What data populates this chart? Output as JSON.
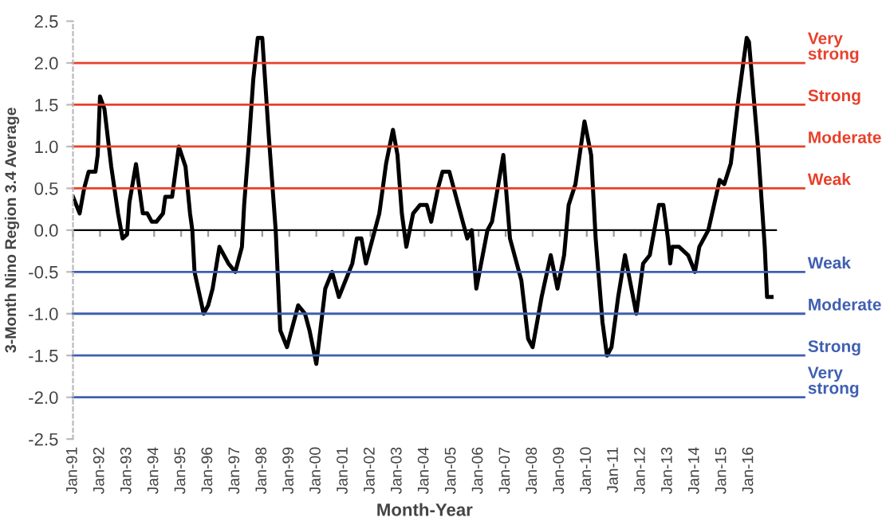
{
  "chart_data": {
    "type": "line",
    "xlabel": "Month-Year",
    "ylabel": "3-Month Nino Region 3.4 Average",
    "x": [
      "1991-01",
      "1991-04",
      "1991-06",
      "1991-08",
      "1991-11",
      "1991-12",
      "1992-01",
      "1992-03",
      "1992-06",
      "1992-09",
      "1992-11",
      "1993-01",
      "1993-02",
      "1993-05",
      "1993-08",
      "1993-10",
      "1993-12",
      "1994-02",
      "1994-05",
      "1994-06",
      "1994-09",
      "1994-12",
      "1995-03",
      "1995-05",
      "1995-06",
      "1995-07",
      "1995-11",
      "1996-01",
      "1996-03",
      "1996-06",
      "1996-10",
      "1997-01",
      "1997-04",
      "1997-05",
      "1997-07",
      "1997-09",
      "1997-11",
      "1998-01",
      "1998-04",
      "1998-07",
      "1998-09",
      "1998-12",
      "1999-05",
      "1999-08",
      "1999-10",
      "2000-01",
      "2000-05",
      "2000-08",
      "2000-11",
      "2001-05",
      "2001-07",
      "2001-09",
      "2001-11",
      "2002-05",
      "2002-08",
      "2002-11",
      "2003-01",
      "2003-03",
      "2003-05",
      "2003-08",
      "2003-11",
      "2004-02",
      "2004-04",
      "2004-07",
      "2004-09",
      "2004-12",
      "2005-04",
      "2005-08",
      "2005-10",
      "2005-12",
      "2006-05",
      "2006-07",
      "2006-12",
      "2007-03",
      "2007-08",
      "2007-11",
      "2008-01",
      "2008-05",
      "2008-09",
      "2008-12",
      "2009-03",
      "2009-05",
      "2009-08",
      "2009-12",
      "2010-03",
      "2010-05",
      "2010-08",
      "2010-10",
      "2010-12",
      "2011-03",
      "2011-06",
      "2011-11",
      "2012-02",
      "2012-05",
      "2012-09",
      "2012-11",
      "2013-01",
      "2013-02",
      "2013-03",
      "2013-06",
      "2013-10",
      "2014-01",
      "2014-03",
      "2014-07",
      "2014-12",
      "2015-02",
      "2015-05",
      "2015-08",
      "2015-12",
      "2016-01",
      "2016-05",
      "2016-08",
      "2016-09",
      "2016-11"
    ],
    "series": [
      {
        "color": "#000000",
        "values": [
          0.4,
          0.2,
          0.5,
          0.7,
          0.7,
          0.9,
          1.6,
          1.45,
          0.76,
          0.2,
          -0.1,
          -0.05,
          0.33,
          0.79,
          0.2,
          0.2,
          0.1,
          0.1,
          0.2,
          0.4,
          0.4,
          1.0,
          0.76,
          0.2,
          0.0,
          -0.5,
          -1.0,
          -0.9,
          -0.7,
          -0.2,
          -0.4,
          -0.5,
          -0.2,
          0.3,
          1.0,
          1.8,
          2.3,
          2.3,
          1.1,
          0.0,
          -1.2,
          -1.4,
          -0.9,
          -1.0,
          -1.2,
          -1.6,
          -0.7,
          -0.5,
          -0.8,
          -0.4,
          -0.1,
          -0.1,
          -0.4,
          0.2,
          0.8,
          1.2,
          0.9,
          0.2,
          -0.2,
          0.2,
          0.3,
          0.3,
          0.1,
          0.5,
          0.7,
          0.7,
          0.3,
          -0.1,
          0.0,
          -0.7,
          0.0,
          0.1,
          0.9,
          -0.1,
          -0.6,
          -1.3,
          -1.4,
          -0.8,
          -0.3,
          -0.7,
          -0.3,
          0.3,
          0.55,
          1.3,
          0.9,
          -0.1,
          -1.1,
          -1.5,
          -1.4,
          -0.8,
          -0.3,
          -1.0,
          -0.4,
          -0.3,
          0.3,
          0.3,
          -0.1,
          -0.4,
          -0.2,
          -0.2,
          -0.3,
          -0.5,
          -0.2,
          0.0,
          0.6,
          0.55,
          0.8,
          1.5,
          2.3,
          2.25,
          1.0,
          -0.2,
          -0.8,
          -0.8
        ]
      }
    ],
    "xlim": [
      "1991-01",
      "2017-01"
    ],
    "xticks": [
      {
        "value": "1991-01",
        "label": "Jan-91"
      },
      {
        "value": "1992-01",
        "label": "Jan-92"
      },
      {
        "value": "1993-01",
        "label": "Jan-93"
      },
      {
        "value": "1994-01",
        "label": "Jan-94"
      },
      {
        "value": "1995-01",
        "label": "Jan-95"
      },
      {
        "value": "1996-01",
        "label": "Jan-96"
      },
      {
        "value": "1997-01",
        "label": "Jan-97"
      },
      {
        "value": "1998-01",
        "label": "Jan-98"
      },
      {
        "value": "1999-01",
        "label": "Jan-99"
      },
      {
        "value": "2000-01",
        "label": "Jan-00"
      },
      {
        "value": "2001-01",
        "label": "Jan-01"
      },
      {
        "value": "2002-01",
        "label": "Jan-02"
      },
      {
        "value": "2003-01",
        "label": "Jan-03"
      },
      {
        "value": "2004-01",
        "label": "Jan-04"
      },
      {
        "value": "2005-01",
        "label": "Jan-05"
      },
      {
        "value": "2006-01",
        "label": "Jan-06"
      },
      {
        "value": "2007-01",
        "label": "Jan-07"
      },
      {
        "value": "2008-01",
        "label": "Jan-08"
      },
      {
        "value": "2009-01",
        "label": "Jan-09"
      },
      {
        "value": "2010-01",
        "label": "Jan-10"
      },
      {
        "value": "2011-01",
        "label": "Jan-11"
      },
      {
        "value": "2012-01",
        "label": "Jan-12"
      },
      {
        "value": "2013-01",
        "label": "Jan-13"
      },
      {
        "value": "2014-01",
        "label": "Jan-14"
      },
      {
        "value": "2015-01",
        "label": "Jan-15"
      },
      {
        "value": "2016-01",
        "label": "Jan-16"
      }
    ],
    "ylim": [
      -2.5,
      2.5
    ],
    "yticks": [
      {
        "value": 2.5,
        "label": "2.5"
      },
      {
        "value": 2.0,
        "label": "2.0"
      },
      {
        "value": 1.5,
        "label": "1.5"
      },
      {
        "value": 1.0,
        "label": "1.0"
      },
      {
        "value": 0.5,
        "label": "0.5"
      },
      {
        "value": 0,
        "label": "0.0"
      },
      {
        "value": -0.5,
        "label": "-0.5"
      },
      {
        "value": -1.0,
        "label": "-1.0"
      },
      {
        "value": -1.5,
        "label": "-1.5"
      },
      {
        "value": -2.0,
        "label": "-2.0"
      },
      {
        "value": -2.5,
        "label": "-2.5"
      }
    ],
    "ref_lines": [
      {
        "axis": "y",
        "value": 2.0,
        "label": "Very\nstrong",
        "color": "#e8402a"
      },
      {
        "axis": "y",
        "value": 1.5,
        "label": "Strong",
        "color": "#e8402a"
      },
      {
        "axis": "y",
        "value": 1.0,
        "label": "Moderate",
        "color": "#e8402a"
      },
      {
        "axis": "y",
        "value": 0.5,
        "label": "Weak",
        "color": "#e8402a"
      },
      {
        "axis": "y",
        "value": -0.5,
        "label": "Weak",
        "color": "#3f5fb0"
      },
      {
        "axis": "y",
        "value": -1.0,
        "label": "Moderate",
        "color": "#3f5fb0"
      },
      {
        "axis": "y",
        "value": -1.5,
        "label": "Strong",
        "color": "#3f5fb0"
      },
      {
        "axis": "y",
        "value": -2.0,
        "label": "Very\nstrong",
        "color": "#3f5fb0"
      }
    ],
    "grid": false,
    "legend": false,
    "marker": "none",
    "line_style": "solid"
  }
}
